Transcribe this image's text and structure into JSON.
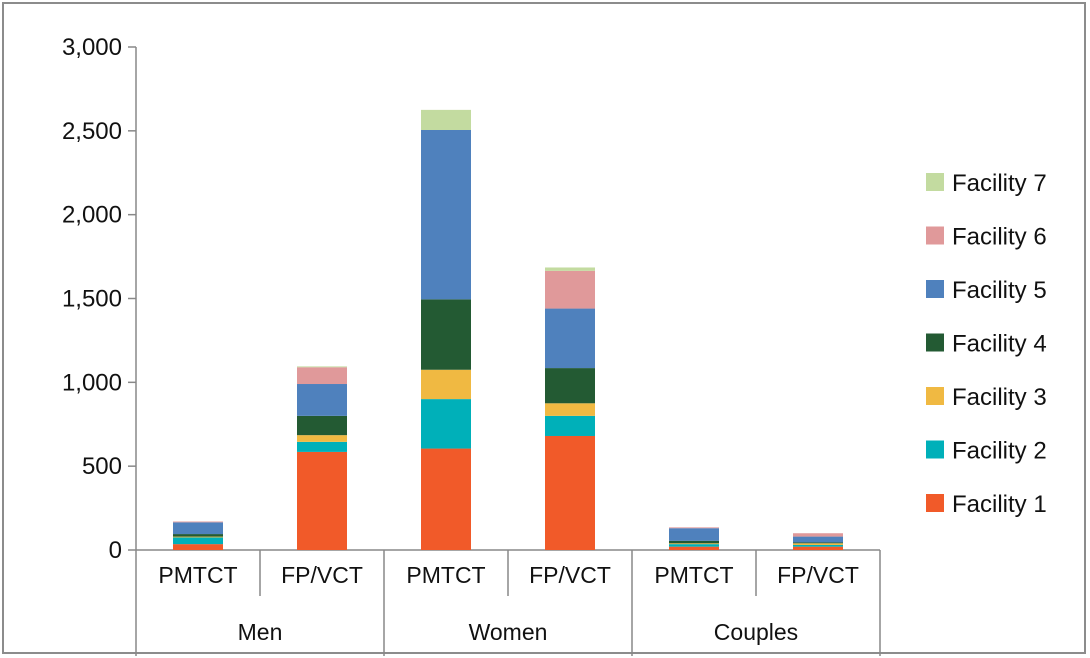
{
  "chart_data": {
    "type": "bar",
    "stacked": true,
    "categories": [
      "PMTCT",
      "FP/VCT",
      "PMTCT",
      "FP/VCT",
      "PMTCT",
      "FP/VCT"
    ],
    "groups": [
      {
        "label": "Men",
        "span": [
          0,
          1
        ]
      },
      {
        "label": "Women",
        "span": [
          2,
          3
        ]
      },
      {
        "label": "Couples",
        "span": [
          4,
          5
        ]
      }
    ],
    "series": [
      {
        "name": "Facility 1",
        "color": "#f15a29",
        "values": [
          35,
          585,
          605,
          680,
          20,
          20
        ]
      },
      {
        "name": "Facility 2",
        "color": "#00b0b9",
        "values": [
          40,
          60,
          295,
          120,
          15,
          10
        ]
      },
      {
        "name": "Facility 3",
        "color": "#f0b942",
        "values": [
          5,
          40,
          175,
          75,
          5,
          10
        ]
      },
      {
        "name": "Facility 4",
        "color": "#235a33",
        "values": [
          15,
          115,
          420,
          210,
          15,
          5
        ]
      },
      {
        "name": "Facility 5",
        "color": "#4f81bd",
        "values": [
          70,
          190,
          1010,
          355,
          75,
          35
        ]
      },
      {
        "name": "Facility 6",
        "color": "#e0999a",
        "values": [
          5,
          100,
          0,
          225,
          5,
          20
        ]
      },
      {
        "name": "Facility 7",
        "color": "#c3dba0",
        "values": [
          0,
          5,
          120,
          20,
          0,
          0
        ]
      }
    ],
    "y_axis": {
      "min": 0,
      "max": 3000,
      "ticks": [
        0,
        500,
        1000,
        1500,
        2000,
        2500,
        3000
      ],
      "tick_labels": [
        "0",
        "500",
        "1,000",
        "1,500",
        "2,000",
        "2,500",
        "3,000"
      ]
    },
    "title": "",
    "xlabel": "",
    "ylabel": "",
    "grid": false,
    "legend_position": "right"
  }
}
